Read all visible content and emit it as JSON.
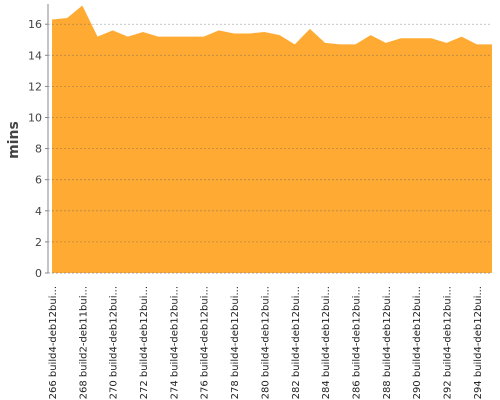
{
  "chart_data": {
    "type": "area",
    "y_label": "mins",
    "categories": [
      "#266 build4-deb12bui...",
      null,
      "#268 build2-deb11bui...",
      null,
      "#270 build4-deb12bui...",
      null,
      "#272 build4-deb12bui...",
      null,
      "#274 build4-deb12bui...",
      null,
      "#276 build4-deb12bui...",
      null,
      "#278 build4-deb12bui...",
      null,
      "#280 build4-deb12bui...",
      null,
      "#282 build4-deb12bui...",
      null,
      "#284 build4-deb12bui...",
      null,
      "#286 build4-deb12bui...",
      null,
      "#288 build4-deb12bui...",
      null,
      "#290 build4-deb12bui...",
      null,
      "#292 build4-deb12bui...",
      null,
      "#294 build4-deb12bui...",
      null
    ],
    "values": [
      16.3,
      16.4,
      17.2,
      15.2,
      15.6,
      15.2,
      15.5,
      15.2,
      15.2,
      15.2,
      15.2,
      15.6,
      15.4,
      15.4,
      15.5,
      15.3,
      14.7,
      15.7,
      14.8,
      14.7,
      14.7,
      15.3,
      14.8,
      15.1,
      15.1,
      15.1,
      14.8,
      15.2,
      14.7,
      14.7
    ],
    "color": "#ffab33",
    "ylim": [
      0,
      17.3
    ],
    "yticks": [
      0,
      2,
      4,
      6,
      8,
      10,
      12,
      14,
      16
    ],
    "grid": true
  }
}
